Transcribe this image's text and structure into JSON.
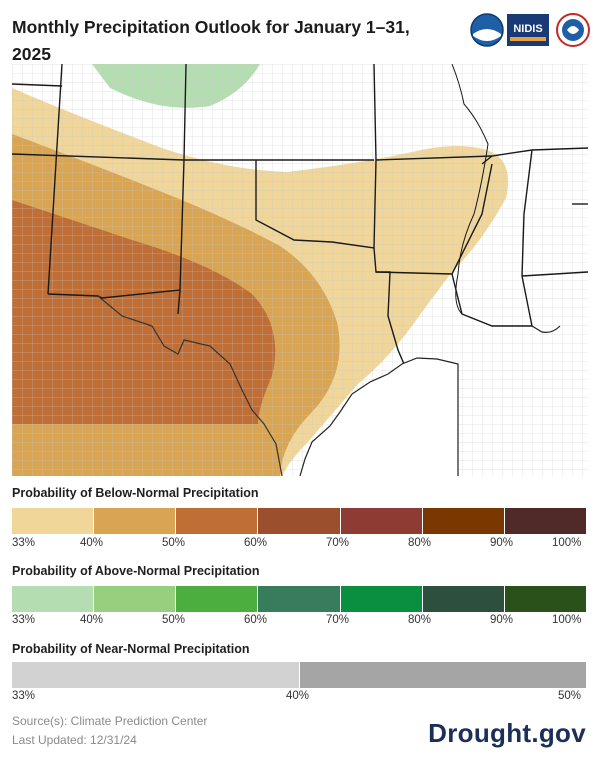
{
  "title": "Monthly Precipitation Outlook for January 1–31, 2025",
  "logos": [
    {
      "name": "noaa-logo",
      "text": "NOAA"
    },
    {
      "name": "nidis-logo",
      "text": "NIDIS"
    },
    {
      "name": "nws-logo",
      "text": "NWS"
    }
  ],
  "colors": {
    "below": [
      "#f1d699",
      "#d9a552",
      "#bf6e35",
      "#9b4f2c",
      "#8e3b34",
      "#7b3700",
      "#4f2a29"
    ],
    "above": [
      "#b4deb1",
      "#96cf7e",
      "#4cae3e",
      "#377c5b",
      "#0a8f40",
      "#2d4f3d",
      "#2b511b"
    ],
    "near": [
      "#d2d2d2",
      "#a5a5a5"
    ]
  },
  "legends": {
    "below": {
      "title": "Probability of Below-Normal Precipitation",
      "ticks": [
        "33%",
        "40%",
        "50%",
        "60%",
        "70%",
        "80%",
        "90%",
        "100%"
      ]
    },
    "above": {
      "title": "Probability of Above-Normal Precipitation",
      "ticks": [
        "33%",
        "40%",
        "50%",
        "60%",
        "70%",
        "80%",
        "90%",
        "100%"
      ]
    },
    "near": {
      "title": "Probability of Near-Normal Precipitation",
      "ticks": [
        "33%",
        "40%",
        "50%"
      ]
    }
  },
  "footer": {
    "source": "Source(s): Climate Prediction Center",
    "updated": "Last Updated: 12/31/24",
    "brand": "Drought.gov"
  }
}
